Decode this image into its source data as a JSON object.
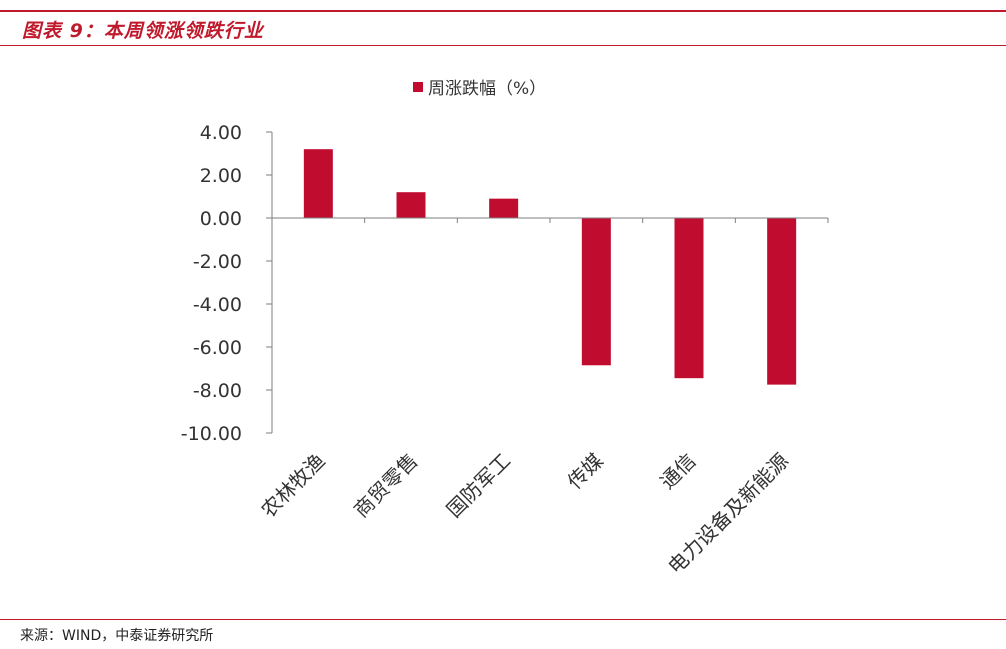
{
  "figure": {
    "title": "图表 9：本周领涨领跌行业",
    "source": "来源：WIND，中泰证券研究所"
  },
  "colors": {
    "accent": "#c0192c",
    "bar": "#c00d2f",
    "axis": "#7f7f7f",
    "text": "#333333"
  },
  "chart_data": {
    "type": "bar",
    "title": "",
    "xlabel": "",
    "ylabel": "",
    "legend_position": "top",
    "grid": false,
    "categories": [
      "农林牧渔",
      "商贸零售",
      "国防军工",
      "传媒",
      "通信",
      "电力设备及新能源"
    ],
    "series": [
      {
        "name": "周涨跌幅（%）",
        "values": [
          3.2,
          1.2,
          0.9,
          -6.85,
          -7.45,
          -7.75
        ]
      }
    ],
    "ylim": [
      -10,
      4
    ],
    "yticks": [
      "4.00",
      "2.00",
      "0.00",
      "-2.00",
      "-4.00",
      "-6.00",
      "-8.00",
      "-10.00"
    ]
  }
}
